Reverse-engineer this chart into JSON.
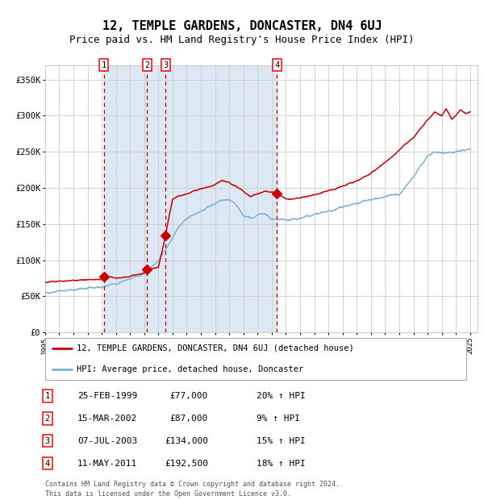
{
  "title": "12, TEMPLE GARDENS, DONCASTER, DN4 6UJ",
  "subtitle": "Price paid vs. HM Land Registry's House Price Index (HPI)",
  "title_fontsize": 11,
  "subtitle_fontsize": 9,
  "xlim": [
    1995.0,
    2025.5
  ],
  "ylim": [
    0,
    370000
  ],
  "yticks": [
    0,
    50000,
    100000,
    150000,
    200000,
    250000,
    300000,
    350000
  ],
  "ytick_labels": [
    "£0",
    "£50K",
    "£100K",
    "£150K",
    "£200K",
    "£250K",
    "£300K",
    "£350K"
  ],
  "xtick_years": [
    1995,
    1996,
    1997,
    1998,
    1999,
    2000,
    2001,
    2002,
    2003,
    2004,
    2005,
    2006,
    2007,
    2008,
    2009,
    2010,
    2011,
    2012,
    2013,
    2014,
    2015,
    2016,
    2017,
    2018,
    2019,
    2020,
    2021,
    2022,
    2023,
    2024,
    2025
  ],
  "grid_color": "#cccccc",
  "bg_color": "#dce9f5",
  "plot_bg": "#ffffff",
  "red_line_color": "#cc0000",
  "blue_line_color": "#7ab4d8",
  "sale_marker_color": "#cc0000",
  "dashed_line_color": "#cc0000",
  "shade_regions": [
    [
      1999.15,
      2011.37
    ]
  ],
  "sales": [
    {
      "num": 1,
      "year": 1999.15,
      "price": 77000,
      "date": "25-FEB-1999",
      "pct": "20% ↑ HPI"
    },
    {
      "num": 2,
      "year": 2002.21,
      "price": 87000,
      "date": "15-MAR-2002",
      "pct": "9% ↑ HPI"
    },
    {
      "num": 3,
      "year": 2003.52,
      "price": 134000,
      "date": "07-JUL-2003",
      "pct": "15% ↑ HPI"
    },
    {
      "num": 4,
      "year": 2011.37,
      "price": 192500,
      "date": "11-MAY-2011",
      "pct": "18% ↑ HPI"
    }
  ],
  "legend_line1": "12, TEMPLE GARDENS, DONCASTER, DN4 6UJ (detached house)",
  "legend_line2": "HPI: Average price, detached house, Doncaster",
  "footer": "Contains HM Land Registry data © Crown copyright and database right 2024.\nThis data is licensed under the Open Government Licence v3.0.",
  "table_rows": [
    [
      "1",
      "25-FEB-1999",
      "£77,000",
      "20% ↑ HPI"
    ],
    [
      "2",
      "15-MAR-2002",
      "£87,000",
      "9% ↑ HPI"
    ],
    [
      "3",
      "07-JUL-2003",
      "£134,000",
      "15% ↑ HPI"
    ],
    [
      "4",
      "11-MAY-2011",
      "£192,500",
      "18% ↑ HPI"
    ]
  ],
  "hpi_anchors": {
    "1995.0": 55000,
    "1996.0": 57500,
    "1997.0": 59000,
    "1998.0": 61000,
    "1999.0": 63000,
    "2000.0": 67000,
    "2001.0": 74000,
    "2002.0": 82000,
    "2003.0": 100000,
    "2004.0": 130000,
    "2004.5": 148000,
    "2005.0": 158000,
    "2006.0": 168000,
    "2007.0": 178000,
    "2007.5": 183000,
    "2008.0": 183000,
    "2008.5": 175000,
    "2009.0": 162000,
    "2009.5": 158000,
    "2010.0": 162000,
    "2010.5": 164000,
    "2011.0": 157000,
    "2012.0": 155000,
    "2013.0": 158000,
    "2014.0": 163000,
    "2015.0": 168000,
    "2016.0": 173000,
    "2017.0": 178000,
    "2018.0": 184000,
    "2019.0": 188000,
    "2019.5": 190000,
    "2020.0": 190000,
    "2021.0": 215000,
    "2022.0": 245000,
    "2022.5": 250000,
    "2023.0": 248000,
    "2024.0": 250000,
    "2025.0": 253000
  },
  "price_anchors": {
    "1995.0": 70000,
    "1996.0": 71000,
    "1997.0": 72000,
    "1998.0": 73000,
    "1999.0": 73500,
    "1999.2": 77000,
    "2000.0": 75000,
    "2001.0": 78000,
    "2002.0": 82000,
    "2002.3": 87000,
    "2003.0": 90000,
    "2003.5": 134000,
    "2004.0": 185000,
    "2005.0": 192000,
    "2006.0": 198000,
    "2007.0": 205000,
    "2007.5": 210000,
    "2008.0": 208000,
    "2008.5": 202000,
    "2009.0": 195000,
    "2009.5": 188000,
    "2010.0": 192000,
    "2010.5": 196000,
    "2011.0": 194000,
    "2011.4": 192500,
    "2012.0": 185000,
    "2013.0": 186000,
    "2014.0": 190000,
    "2015.0": 196000,
    "2016.0": 202000,
    "2017.0": 210000,
    "2018.0": 220000,
    "2019.0": 235000,
    "2020.0": 252000,
    "2021.0": 270000,
    "2022.0": 295000,
    "2022.5": 305000,
    "2023.0": 300000,
    "2023.3": 310000,
    "2023.7": 295000,
    "2024.0": 300000,
    "2024.3": 308000,
    "2024.7": 302000,
    "2025.0": 306000
  }
}
